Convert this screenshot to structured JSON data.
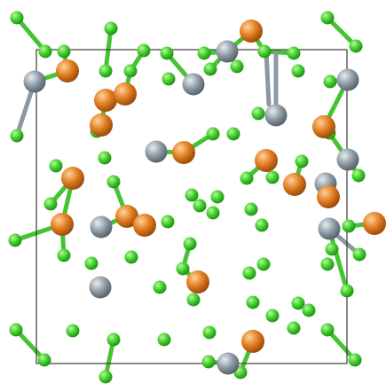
{
  "scene": {
    "background": "#ffffff",
    "cell_outline_color": "#3a3a3a",
    "atom_types": {
      "Cl": {
        "color": "#3fcf2a",
        "highlight": "#b9f59e",
        "shade": "#1f8f14"
      },
      "Fe": {
        "color": "#e07b1f",
        "highlight": "#ffd29a",
        "shade": "#9a4a0a"
      },
      "Sn": {
        "color": "#8e9aa3",
        "highlight": "#e6edf1",
        "shade": "#56626b"
      }
    },
    "bond_color": "#46c332",
    "bond_gray_color": "#8c98a0"
  }
}
